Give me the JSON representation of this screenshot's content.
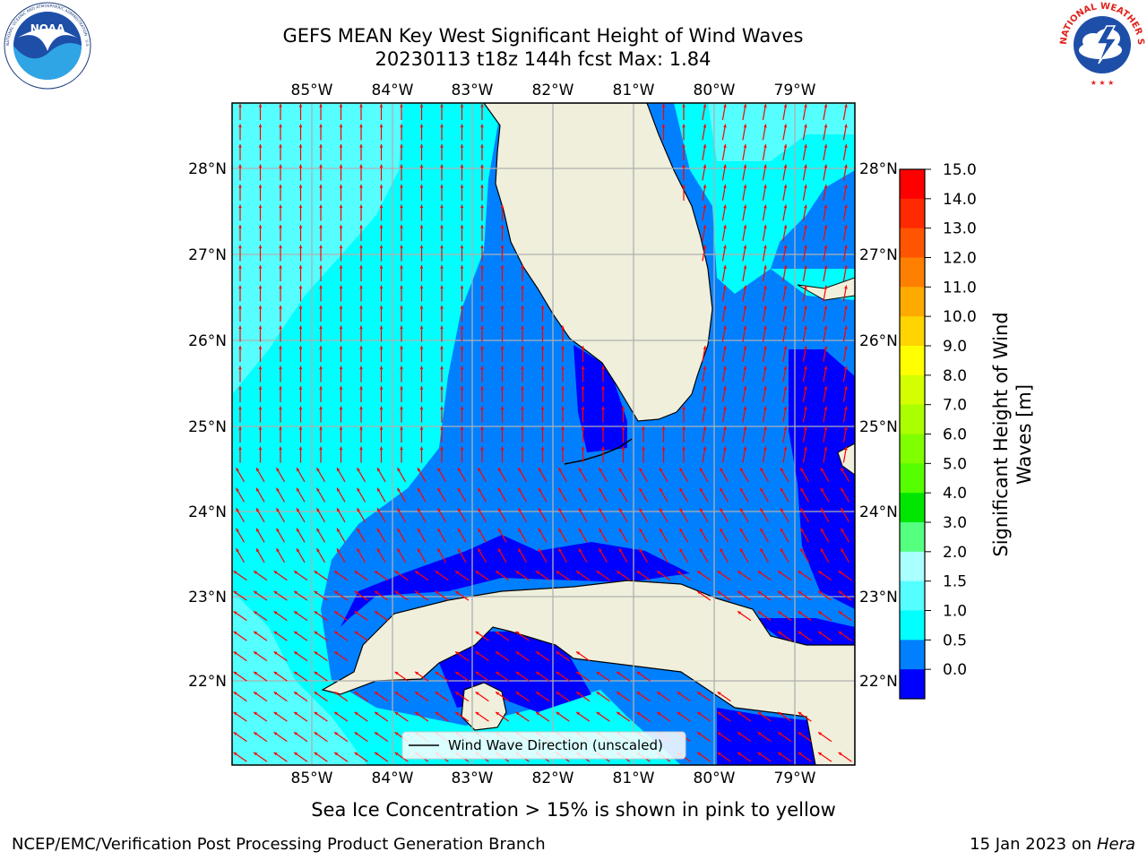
{
  "title_line1": "GEFS MEAN Key West Significant Height of Wind Waves",
  "title_line2": "20230113 t18z 144h fcst   Max: 1.84",
  "lon_labels": [
    "85°W",
    "84°W",
    "83°W",
    "82°W",
    "81°W",
    "80°W",
    "79°W"
  ],
  "lat_labels": [
    "28°N",
    "27°N",
    "26°N",
    "25°N",
    "24°N",
    "23°N",
    "22°N"
  ],
  "legend_label": "Wind Wave Direction (unscaled)",
  "colorbar": {
    "label_line1": "Significant Height of Wind",
    "label_line2": "Waves [m]",
    "ticks": [
      "15.0",
      "14.0",
      "13.0",
      "12.0",
      "11.0",
      "10.0",
      "9.0",
      "8.0",
      "7.0",
      "6.0",
      "5.0",
      "4.0",
      "3.0",
      "2.0",
      "1.5",
      "1.0",
      "0.5",
      "0.0"
    ],
    "colors_top_to_bottom": [
      "#ff0000",
      "#ff2a00",
      "#ff5500",
      "#ff8000",
      "#ffaa00",
      "#ffd400",
      "#ffff00",
      "#d4ff00",
      "#aaff00",
      "#80ff00",
      "#55ff00",
      "#00e600",
      "#55ff80",
      "#aaffff",
      "#55ffff",
      "#00ffff",
      "#0080ff",
      "#0000ff"
    ]
  },
  "sea_ice_note": "Sea Ice Concentration > 15% is shown in pink to yellow",
  "footer_left": "NCEP/EMC/Verification Post Processing Product Generation Branch",
  "footer_right_date": "15 Jan 2023 on ",
  "footer_right_host": "Hera",
  "noaa_logo_text": "NOAA",
  "noaa_ring_text": "NATIONAL OCEANIC AND ATMOSPHERIC ADMINISTRATION · U.S. DEPARTMENT OF COMMERCE",
  "nws_ring_text": "NATIONAL WEATHER SERVICE",
  "chart_data": {
    "type": "heatmap",
    "variable": "Significant Height of Wind Waves",
    "units": "m",
    "max": 1.84,
    "lon_range": [
      -86,
      -78.3
    ],
    "lat_range": [
      21,
      28.8
    ],
    "grid": true,
    "legend_placement": "bottom-center",
    "colorbar_placement": "right"
  }
}
